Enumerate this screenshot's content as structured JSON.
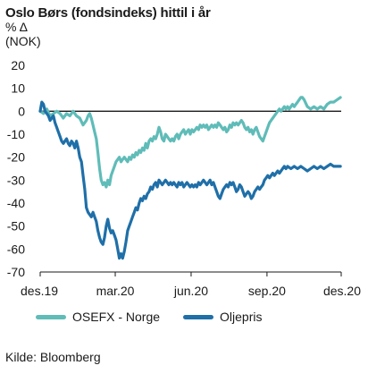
{
  "header": {
    "title": "Oslo Børs (fondsindeks) hittil i år",
    "unit_line1": "% Δ",
    "unit_line2": "(NOK)"
  },
  "source": "Kilde: Bloomberg",
  "chart_data": {
    "type": "line",
    "title": "Oslo Børs (fondsindeks) hittil i år",
    "ylabel": "% Δ (NOK)",
    "xlabel": "",
    "ylim": [
      -70,
      20
    ],
    "yticks": [
      20,
      10,
      0,
      -10,
      -20,
      -30,
      -40,
      -50,
      -60,
      -70
    ],
    "xlim": [
      0,
      365
    ],
    "xticks": [
      {
        "x": 0,
        "label": "des.19"
      },
      {
        "x": 91,
        "label": "mar.20"
      },
      {
        "x": 183,
        "label": "jun.20"
      },
      {
        "x": 275,
        "label": "sep.20"
      },
      {
        "x": 365,
        "label": "des.20"
      }
    ],
    "reference_line": 0,
    "grid": false,
    "legend_position": "bottom",
    "series": [
      {
        "name": "OSEFX - Norge",
        "color": "#5fbcb8",
        "points": [
          [
            0,
            0
          ],
          [
            4,
            -1
          ],
          [
            8,
            1
          ],
          [
            12,
            -2
          ],
          [
            16,
            -1
          ],
          [
            20,
            0
          ],
          [
            24,
            -1
          ],
          [
            28,
            -3
          ],
          [
            32,
            -1
          ],
          [
            36,
            -2
          ],
          [
            40,
            0
          ],
          [
            44,
            -2
          ],
          [
            48,
            -3
          ],
          [
            52,
            -6
          ],
          [
            56,
            -4
          ],
          [
            58,
            -2
          ],
          [
            60,
            -1
          ],
          [
            62,
            -3
          ],
          [
            64,
            -6
          ],
          [
            66,
            -9
          ],
          [
            68,
            -12
          ],
          [
            70,
            -18
          ],
          [
            72,
            -25
          ],
          [
            74,
            -30
          ],
          [
            76,
            -32
          ],
          [
            78,
            -31
          ],
          [
            80,
            -33
          ],
          [
            82,
            -30
          ],
          [
            84,
            -32
          ],
          [
            86,
            -28
          ],
          [
            88,
            -26
          ],
          [
            90,
            -24
          ],
          [
            92,
            -22
          ],
          [
            94,
            -21
          ],
          [
            96,
            -20
          ],
          [
            98,
            -22
          ],
          [
            100,
            -21
          ],
          [
            102,
            -20
          ],
          [
            104,
            -21
          ],
          [
            106,
            -22
          ],
          [
            108,
            -20
          ],
          [
            110,
            -21
          ],
          [
            112,
            -19
          ],
          [
            114,
            -20
          ],
          [
            116,
            -18
          ],
          [
            118,
            -19
          ],
          [
            120,
            -17
          ],
          [
            122,
            -18
          ],
          [
            124,
            -16
          ],
          [
            126,
            -17
          ],
          [
            128,
            -14
          ],
          [
            130,
            -16
          ],
          [
            132,
            -13
          ],
          [
            134,
            -12
          ],
          [
            136,
            -13
          ],
          [
            138,
            -11
          ],
          [
            140,
            -12
          ],
          [
            142,
            -10
          ],
          [
            144,
            -7
          ],
          [
            146,
            -9
          ],
          [
            148,
            -12
          ],
          [
            150,
            -13
          ],
          [
            152,
            -10
          ],
          [
            154,
            -11
          ],
          [
            156,
            -12
          ],
          [
            158,
            -13
          ],
          [
            160,
            -12
          ],
          [
            162,
            -13
          ],
          [
            164,
            -11
          ],
          [
            166,
            -10
          ],
          [
            168,
            -12
          ],
          [
            170,
            -10
          ],
          [
            172,
            -9
          ],
          [
            174,
            -8
          ],
          [
            176,
            -10
          ],
          [
            178,
            -9
          ],
          [
            180,
            -8
          ],
          [
            182,
            -10
          ],
          [
            184,
            -8
          ],
          [
            186,
            -9
          ],
          [
            188,
            -8
          ],
          [
            190,
            -7
          ],
          [
            192,
            -8
          ],
          [
            194,
            -6
          ],
          [
            196,
            -7
          ],
          [
            198,
            -6
          ],
          [
            200,
            -7
          ],
          [
            202,
            -6
          ],
          [
            204,
            -8
          ],
          [
            206,
            -7
          ],
          [
            208,
            -6
          ],
          [
            210,
            -7
          ],
          [
            212,
            -6
          ],
          [
            214,
            -7
          ],
          [
            216,
            -5
          ],
          [
            218,
            -6
          ],
          [
            220,
            -7
          ],
          [
            222,
            -8
          ],
          [
            224,
            -7
          ],
          [
            226,
            -9
          ],
          [
            228,
            -8
          ],
          [
            230,
            -6
          ],
          [
            232,
            -7
          ],
          [
            234,
            -5
          ],
          [
            236,
            -6
          ],
          [
            238,
            -5
          ],
          [
            240,
            -6
          ],
          [
            242,
            -5
          ],
          [
            244,
            -4
          ],
          [
            246,
            -5
          ],
          [
            248,
            -7
          ],
          [
            250,
            -8
          ],
          [
            252,
            -7
          ],
          [
            254,
            -9
          ],
          [
            256,
            -8
          ],
          [
            258,
            -10
          ],
          [
            260,
            -8
          ],
          [
            262,
            -7
          ],
          [
            264,
            -9
          ],
          [
            266,
            -11
          ],
          [
            268,
            -12
          ],
          [
            270,
            -13
          ],
          [
            272,
            -11
          ],
          [
            274,
            -9
          ],
          [
            276,
            -7
          ],
          [
            278,
            -5
          ],
          [
            280,
            -4
          ],
          [
            282,
            -3
          ],
          [
            284,
            -2
          ],
          [
            286,
            -1
          ],
          [
            288,
            0
          ],
          [
            290,
            1
          ],
          [
            292,
            0
          ],
          [
            294,
            1
          ],
          [
            296,
            2
          ],
          [
            298,
            1
          ],
          [
            300,
            2
          ],
          [
            302,
            1
          ],
          [
            304,
            2
          ],
          [
            306,
            3
          ],
          [
            308,
            2
          ],
          [
            310,
            3
          ],
          [
            312,
            4
          ],
          [
            314,
            5
          ],
          [
            316,
            6
          ],
          [
            318,
            6
          ],
          [
            320,
            5
          ],
          [
            324,
            2
          ],
          [
            328,
            1
          ],
          [
            332,
            2
          ],
          [
            336,
            1
          ],
          [
            340,
            2
          ],
          [
            344,
            1
          ],
          [
            348,
            3
          ],
          [
            352,
            4
          ],
          [
            356,
            4
          ],
          [
            360,
            5
          ],
          [
            364,
            6
          ]
        ]
      },
      {
        "name": "Oljepris",
        "color": "#1f6fa8",
        "points": [
          [
            0,
            0
          ],
          [
            2,
            4
          ],
          [
            4,
            3
          ],
          [
            6,
            0
          ],
          [
            8,
            -1
          ],
          [
            10,
            -2
          ],
          [
            12,
            -4
          ],
          [
            14,
            -3
          ],
          [
            16,
            -2
          ],
          [
            18,
            -5
          ],
          [
            20,
            -7
          ],
          [
            22,
            -9
          ],
          [
            24,
            -11
          ],
          [
            26,
            -13
          ],
          [
            28,
            -14
          ],
          [
            30,
            -13
          ],
          [
            32,
            -12
          ],
          [
            34,
            -14
          ],
          [
            36,
            -15
          ],
          [
            38,
            -13
          ],
          [
            40,
            -14
          ],
          [
            42,
            -16
          ],
          [
            44,
            -13
          ],
          [
            46,
            -16
          ],
          [
            48,
            -20
          ],
          [
            50,
            -22
          ],
          [
            52,
            -28
          ],
          [
            54,
            -34
          ],
          [
            56,
            -42
          ],
          [
            58,
            -44
          ],
          [
            60,
            -45
          ],
          [
            62,
            -46
          ],
          [
            64,
            -44
          ],
          [
            66,
            -46
          ],
          [
            68,
            -48
          ],
          [
            70,
            -52
          ],
          [
            72,
            -55
          ],
          [
            74,
            -57
          ],
          [
            76,
            -58
          ],
          [
            78,
            -55
          ],
          [
            80,
            -50
          ],
          [
            82,
            -47
          ],
          [
            84,
            -51
          ],
          [
            86,
            -53
          ],
          [
            88,
            -52
          ],
          [
            90,
            -54
          ],
          [
            92,
            -56
          ],
          [
            94,
            -60
          ],
          [
            96,
            -64
          ],
          [
            98,
            -62
          ],
          [
            100,
            -64
          ],
          [
            102,
            -61
          ],
          [
            104,
            -57
          ],
          [
            106,
            -52
          ],
          [
            108,
            -50
          ],
          [
            110,
            -48
          ],
          [
            112,
            -46
          ],
          [
            114,
            -44
          ],
          [
            116,
            -42
          ],
          [
            118,
            -43
          ],
          [
            120,
            -40
          ],
          [
            122,
            -38
          ],
          [
            124,
            -39
          ],
          [
            126,
            -37
          ],
          [
            128,
            -38
          ],
          [
            130,
            -36
          ],
          [
            132,
            -35
          ],
          [
            134,
            -33
          ],
          [
            136,
            -34
          ],
          [
            138,
            -32
          ],
          [
            140,
            -31
          ],
          [
            142,
            -33
          ],
          [
            144,
            -30
          ],
          [
            146,
            -31
          ],
          [
            148,
            -32
          ],
          [
            150,
            -31
          ],
          [
            152,
            -30
          ],
          [
            154,
            -31
          ],
          [
            156,
            -32
          ],
          [
            158,
            -31
          ],
          [
            160,
            -32
          ],
          [
            162,
            -31
          ],
          [
            164,
            -32
          ],
          [
            166,
            -33
          ],
          [
            168,
            -31
          ],
          [
            170,
            -32
          ],
          [
            172,
            -31
          ],
          [
            174,
            -33
          ],
          [
            176,
            -32
          ],
          [
            178,
            -31
          ],
          [
            180,
            -32
          ],
          [
            182,
            -33
          ],
          [
            184,
            -32
          ],
          [
            186,
            -33
          ],
          [
            188,
            -32
          ],
          [
            190,
            -33
          ],
          [
            192,
            -31
          ],
          [
            194,
            -32
          ],
          [
            196,
            -31
          ],
          [
            198,
            -30
          ],
          [
            200,
            -31
          ],
          [
            202,
            -32
          ],
          [
            204,
            -31
          ],
          [
            206,
            -30
          ],
          [
            208,
            -32
          ],
          [
            210,
            -31
          ],
          [
            212,
            -33
          ],
          [
            214,
            -35
          ],
          [
            216,
            -37
          ],
          [
            218,
            -38
          ],
          [
            220,
            -36
          ],
          [
            222,
            -34
          ],
          [
            224,
            -33
          ],
          [
            226,
            -32
          ],
          [
            228,
            -33
          ],
          [
            230,
            -31
          ],
          [
            232,
            -32
          ],
          [
            234,
            -31
          ],
          [
            236,
            -33
          ],
          [
            238,
            -35
          ],
          [
            240,
            -34
          ],
          [
            242,
            -32
          ],
          [
            244,
            -33
          ],
          [
            246,
            -35
          ],
          [
            248,
            -37
          ],
          [
            250,
            -36
          ],
          [
            252,
            -35
          ],
          [
            254,
            -36
          ],
          [
            256,
            -38
          ],
          [
            258,
            -37
          ],
          [
            260,
            -35
          ],
          [
            262,
            -34
          ],
          [
            264,
            -33
          ],
          [
            266,
            -34
          ],
          [
            268,
            -33
          ],
          [
            270,
            -32
          ],
          [
            272,
            -30
          ],
          [
            274,
            -29
          ],
          [
            276,
            -28
          ],
          [
            278,
            -29
          ],
          [
            280,
            -28
          ],
          [
            282,
            -27
          ],
          [
            284,
            -28
          ],
          [
            286,
            -27
          ],
          [
            288,
            -26
          ],
          [
            290,
            -27
          ],
          [
            292,
            -26
          ],
          [
            294,
            -25
          ],
          [
            296,
            -24
          ],
          [
            298,
            -25
          ],
          [
            300,
            -24
          ],
          [
            304,
            -25
          ],
          [
            308,
            -24
          ],
          [
            312,
            -25
          ],
          [
            316,
            -24
          ],
          [
            320,
            -25
          ],
          [
            324,
            -26
          ],
          [
            328,
            -25
          ],
          [
            332,
            -24
          ],
          [
            336,
            -25
          ],
          [
            340,
            -24
          ],
          [
            344,
            -25
          ],
          [
            348,
            -24
          ],
          [
            352,
            -23
          ],
          [
            356,
            -24
          ],
          [
            360,
            -24
          ],
          [
            364,
            -24
          ]
        ]
      }
    ]
  }
}
